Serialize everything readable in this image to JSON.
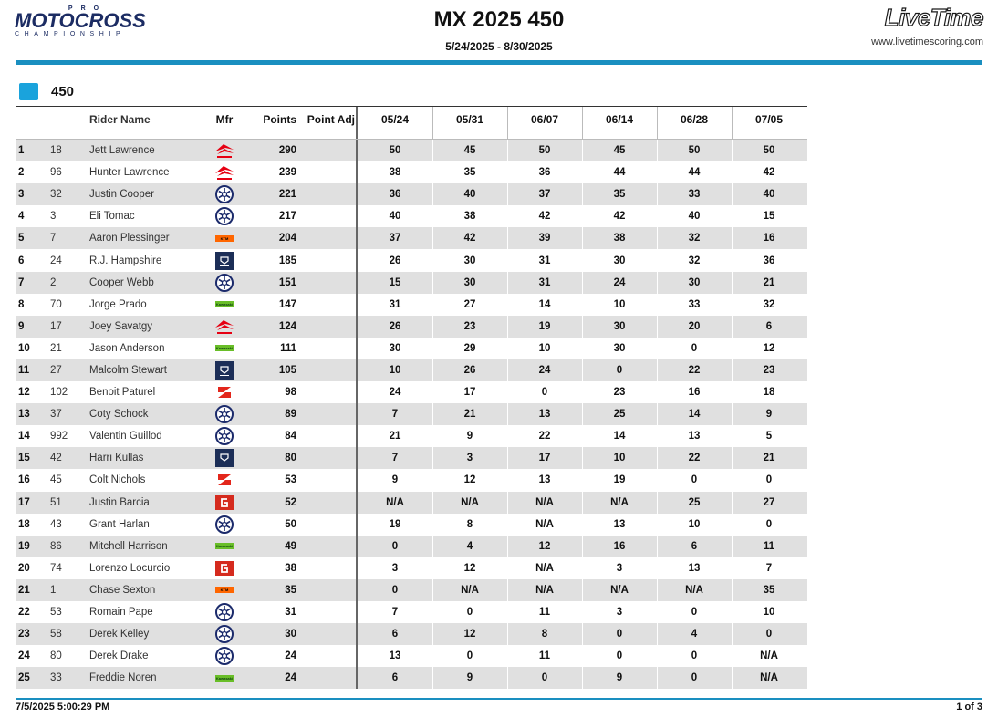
{
  "header": {
    "logo_pro": "PRO",
    "logo_main": "MOTOCROSS",
    "logo_sub": "CHAMPIONSHIP",
    "title": "MX 2025 450",
    "date_range": "5/24/2025 - 8/30/2025",
    "livetime_logo": "LiveTime",
    "livetime_url": "www.livetimescoring.com"
  },
  "class_name": "450",
  "class_color": "#1aa3dc",
  "columns": {
    "rider_name": "Rider Name",
    "mfr": "Mfr",
    "points": "Points",
    "point_adj": "Point Adj",
    "rounds": [
      "05/24",
      "05/31",
      "06/07",
      "06/14",
      "06/28",
      "07/05"
    ]
  },
  "rows": [
    {
      "pos": "1",
      "num": "18",
      "name": "Jett Lawrence",
      "mfr": "honda-icon",
      "points": "290",
      "adj": "",
      "r": [
        "50",
        "45",
        "50",
        "45",
        "50",
        "50"
      ]
    },
    {
      "pos": "2",
      "num": "96",
      "name": "Hunter Lawrence",
      "mfr": "honda-icon",
      "points": "239",
      "adj": "",
      "r": [
        "38",
        "35",
        "36",
        "44",
        "44",
        "42"
      ]
    },
    {
      "pos": "3",
      "num": "32",
      "name": "Justin Cooper",
      "mfr": "yamaha-icon",
      "points": "221",
      "adj": "",
      "r": [
        "36",
        "40",
        "37",
        "35",
        "33",
        "40"
      ]
    },
    {
      "pos": "4",
      "num": "3",
      "name": "Eli Tomac",
      "mfr": "yamaha-icon",
      "points": "217",
      "adj": "",
      "r": [
        "40",
        "38",
        "42",
        "42",
        "40",
        "15"
      ]
    },
    {
      "pos": "5",
      "num": "7",
      "name": "Aaron Plessinger",
      "mfr": "ktm-icon",
      "points": "204",
      "adj": "",
      "r": [
        "37",
        "42",
        "39",
        "38",
        "32",
        "16"
      ]
    },
    {
      "pos": "6",
      "num": "24",
      "name": "R.J. Hampshire",
      "mfr": "husqvarna-icon",
      "points": "185",
      "adj": "",
      "r": [
        "26",
        "30",
        "31",
        "30",
        "32",
        "36"
      ]
    },
    {
      "pos": "7",
      "num": "2",
      "name": "Cooper Webb",
      "mfr": "yamaha-icon",
      "points": "151",
      "adj": "",
      "r": [
        "15",
        "30",
        "31",
        "24",
        "30",
        "21"
      ]
    },
    {
      "pos": "8",
      "num": "70",
      "name": "Jorge Prado",
      "mfr": "kawasaki-icon",
      "points": "147",
      "adj": "",
      "r": [
        "31",
        "27",
        "14",
        "10",
        "33",
        "32"
      ]
    },
    {
      "pos": "9",
      "num": "17",
      "name": "Joey Savatgy",
      "mfr": "honda-icon",
      "points": "124",
      "adj": "",
      "r": [
        "26",
        "23",
        "19",
        "30",
        "20",
        "6"
      ]
    },
    {
      "pos": "10",
      "num": "21",
      "name": "Jason Anderson",
      "mfr": "kawasaki-icon",
      "points": "111",
      "adj": "",
      "r": [
        "30",
        "29",
        "10",
        "30",
        "0",
        "12"
      ]
    },
    {
      "pos": "11",
      "num": "27",
      "name": "Malcolm Stewart",
      "mfr": "husqvarna-icon",
      "points": "105",
      "adj": "",
      "r": [
        "10",
        "26",
        "24",
        "0",
        "22",
        "23"
      ]
    },
    {
      "pos": "12",
      "num": "102",
      "name": "Benoit Paturel",
      "mfr": "suzuki-icon",
      "points": "98",
      "adj": "",
      "r": [
        "24",
        "17",
        "0",
        "23",
        "16",
        "18"
      ]
    },
    {
      "pos": "13",
      "num": "37",
      "name": "Coty Schock",
      "mfr": "yamaha-icon",
      "points": "89",
      "adj": "",
      "r": [
        "7",
        "21",
        "13",
        "25",
        "14",
        "9"
      ]
    },
    {
      "pos": "14",
      "num": "992",
      "name": "Valentin Guillod",
      "mfr": "yamaha-icon",
      "points": "84",
      "adj": "",
      "r": [
        "21",
        "9",
        "22",
        "14",
        "13",
        "5"
      ]
    },
    {
      "pos": "15",
      "num": "42",
      "name": "Harri Kullas",
      "mfr": "husqvarna-icon",
      "points": "80",
      "adj": "",
      "r": [
        "7",
        "3",
        "17",
        "10",
        "22",
        "21"
      ]
    },
    {
      "pos": "16",
      "num": "45",
      "name": "Colt Nichols",
      "mfr": "suzuki-icon",
      "points": "53",
      "adj": "",
      "r": [
        "9",
        "12",
        "13",
        "19",
        "0",
        "0"
      ]
    },
    {
      "pos": "17",
      "num": "51",
      "name": "Justin Barcia",
      "mfr": "gasgas-icon",
      "points": "52",
      "adj": "",
      "r": [
        "N/A",
        "N/A",
        "N/A",
        "N/A",
        "25",
        "27"
      ]
    },
    {
      "pos": "18",
      "num": "43",
      "name": "Grant Harlan",
      "mfr": "yamaha-icon",
      "points": "50",
      "adj": "",
      "r": [
        "19",
        "8",
        "N/A",
        "13",
        "10",
        "0"
      ]
    },
    {
      "pos": "19",
      "num": "86",
      "name": "Mitchell Harrison",
      "mfr": "kawasaki-icon",
      "points": "49",
      "adj": "",
      "r": [
        "0",
        "4",
        "12",
        "16",
        "6",
        "11"
      ]
    },
    {
      "pos": "20",
      "num": "74",
      "name": "Lorenzo Locurcio",
      "mfr": "gasgas-icon",
      "points": "38",
      "adj": "",
      "r": [
        "3",
        "12",
        "N/A",
        "3",
        "13",
        "7"
      ]
    },
    {
      "pos": "21",
      "num": "1",
      "name": "Chase Sexton",
      "mfr": "ktm-icon",
      "points": "35",
      "adj": "",
      "r": [
        "0",
        "N/A",
        "N/A",
        "N/A",
        "N/A",
        "35"
      ]
    },
    {
      "pos": "22",
      "num": "53",
      "name": "Romain Pape",
      "mfr": "yamaha-icon",
      "points": "31",
      "adj": "",
      "r": [
        "7",
        "0",
        "11",
        "3",
        "0",
        "10"
      ]
    },
    {
      "pos": "23",
      "num": "58",
      "name": "Derek Kelley",
      "mfr": "yamaha-icon",
      "points": "30",
      "adj": "",
      "r": [
        "6",
        "12",
        "8",
        "0",
        "4",
        "0"
      ]
    },
    {
      "pos": "24",
      "num": "80",
      "name": "Derek Drake",
      "mfr": "yamaha-icon",
      "points": "24",
      "adj": "",
      "r": [
        "13",
        "0",
        "11",
        "0",
        "0",
        "N/A"
      ]
    },
    {
      "pos": "25",
      "num": "33",
      "name": "Freddie Noren",
      "mfr": "kawasaki-icon",
      "points": "24",
      "adj": "",
      "r": [
        "6",
        "9",
        "0",
        "9",
        "0",
        "N/A"
      ]
    }
  ],
  "footer": {
    "timestamp": "7/5/2025 5:00:29 PM",
    "page": "1 of 3"
  },
  "colors": {
    "accent": "#1a8fc0",
    "row_alt": "#e0e0e0",
    "honda": "#e60012",
    "yamaha": "#1b2a6b",
    "ktm": "#ff6600",
    "husqvarna": "#1c2e57",
    "kawasaki": "#69be28",
    "suzuki": "#e3261b",
    "gasgas": "#d52b1e"
  }
}
